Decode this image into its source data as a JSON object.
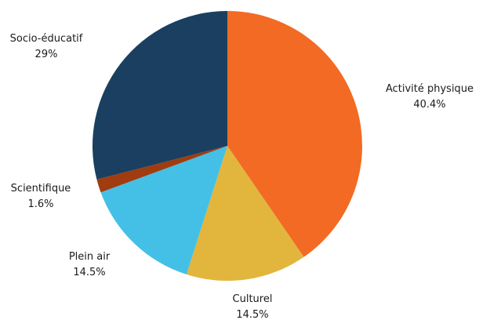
{
  "chart_data": {
    "type": "pie",
    "title": "",
    "start_angle_deg": 0,
    "direction": "clockwise",
    "categories": [
      "Activité physique",
      "Culturel",
      "Plein air",
      "Scientifique",
      "Socio-éducatif"
    ],
    "values": [
      40.4,
      14.5,
      14.5,
      1.6,
      29.0
    ],
    "value_labels": [
      "40.4%",
      "14.5%",
      "14.5%",
      "1.6%",
      "29%"
    ],
    "colors": [
      "#f26a24",
      "#e2b53c",
      "#44c0e6",
      "#a03c10",
      "#1a3f60"
    ]
  }
}
